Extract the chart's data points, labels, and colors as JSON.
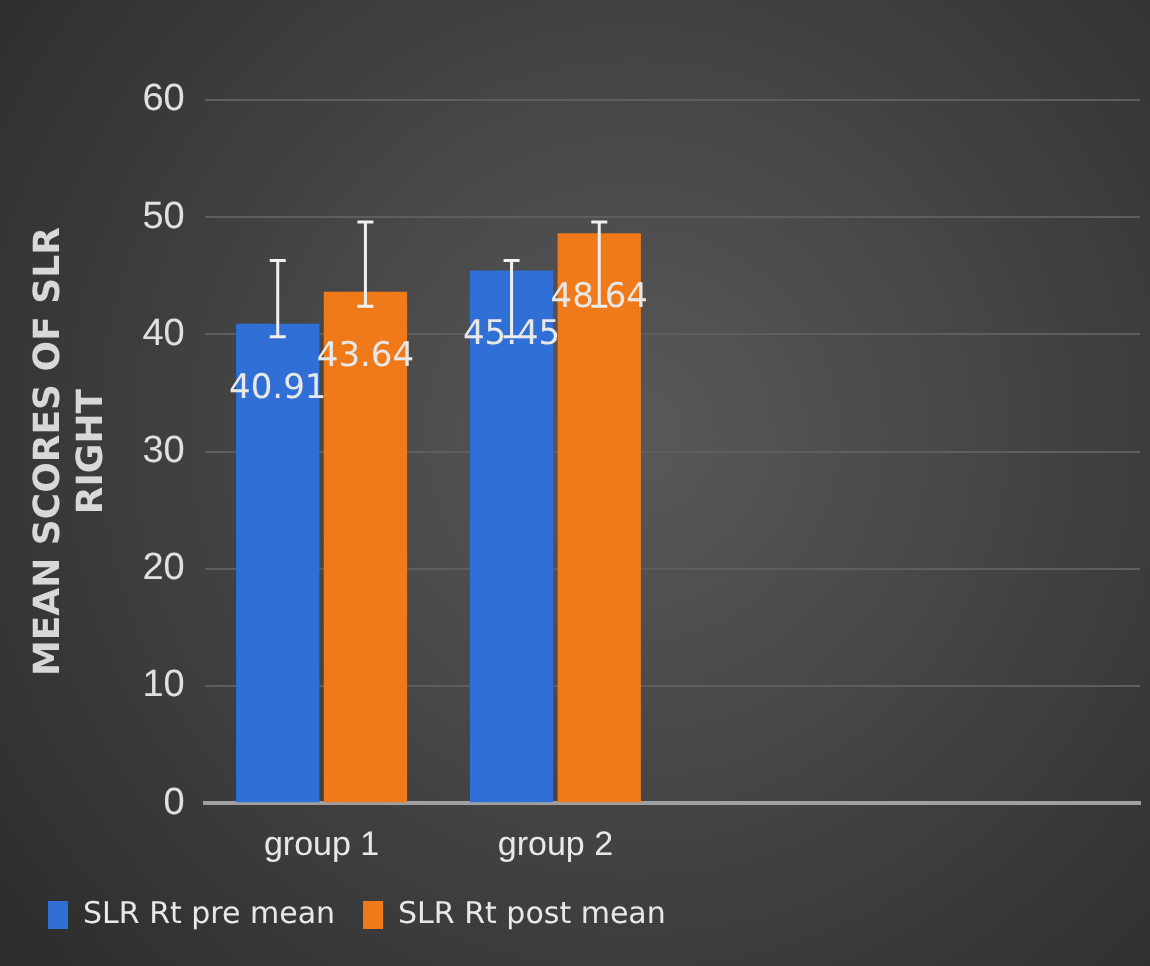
{
  "chart_data": {
    "type": "bar",
    "ylabel": "MEAN SCORES OF SLR RIGHT",
    "categories": [
      "group 1",
      "group 2",
      null,
      null
    ],
    "series": [
      {
        "name": "SLR Rt pre mean",
        "color": "#2f6fd6",
        "values": [
          40.91,
          45.45,
          null,
          null
        ],
        "errors": [
          [
            39.8,
            46.3
          ],
          [
            39.8,
            46.3
          ],
          null,
          null
        ]
      },
      {
        "name": "SLR Rt post mean",
        "color": "#f07a1a",
        "values": [
          43.64,
          48.64,
          null,
          null
        ],
        "errors": [
          [
            42.4,
            49.6
          ],
          [
            42.4,
            49.6
          ],
          null,
          null
        ]
      }
    ],
    "ylim": [
      0,
      60
    ],
    "yticks": [
      0,
      10,
      20,
      30,
      40,
      50,
      60
    ],
    "grid": "y",
    "legend": "bottom",
    "data_labels": true
  }
}
